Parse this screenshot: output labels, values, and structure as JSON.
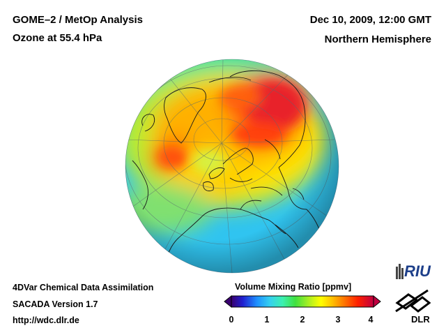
{
  "header": {
    "title_line1": "GOME–2 / MetOp Analysis",
    "title_line2": "Ozone at 55.4 hPa",
    "datetime": "Dec 10, 2009, 12:00 GMT",
    "region": "Northern Hemisphere"
  },
  "footer": {
    "line1": "4DVar Chemical Data Assimilation",
    "line2": "SACADA Version 1.7",
    "url": "http://wdc.dlr.de"
  },
  "colorbar": {
    "title": "Volume Mixing Ratio [ppmv]",
    "ticks": [
      "0",
      "1",
      "2",
      "3",
      "4"
    ],
    "range": [
      0,
      4
    ],
    "colors": [
      "#3a0070",
      "#2020d0",
      "#1e90ff",
      "#34d0f0",
      "#3cf0b0",
      "#40e040",
      "#b0f020",
      "#ffff00",
      "#ffc000",
      "#ff7000",
      "#ff2000",
      "#e00020",
      "#c00040"
    ]
  },
  "map": {
    "projection": "orthographic",
    "ocean_color": "#34c8f0",
    "high_ozone_color": "#e8202a",
    "medium_ozone_color": "#ffe000"
  },
  "logos": {
    "riu": "RIU",
    "dlr": "DLR"
  }
}
